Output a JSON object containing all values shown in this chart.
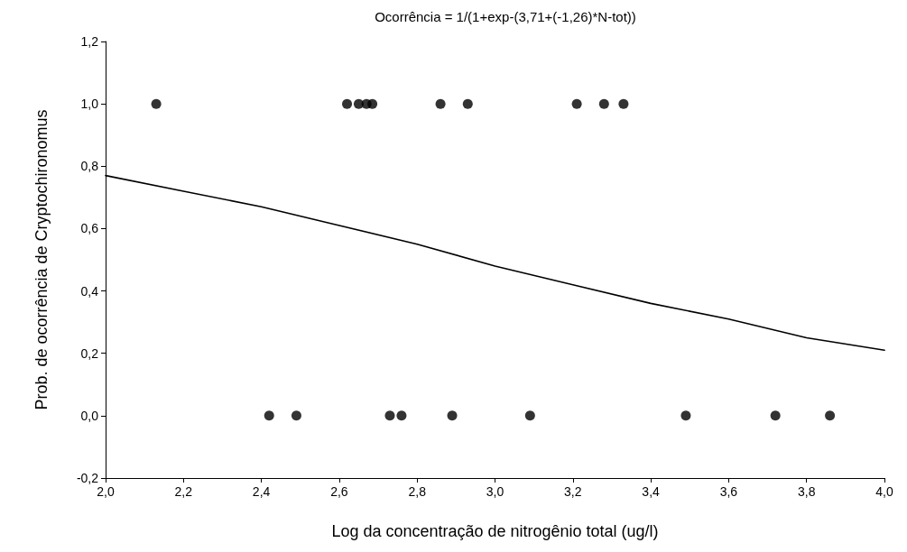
{
  "chart_data": {
    "type": "scatter",
    "title": "Ocorrência = 1/(1+exp-(3,71+(-1,26)*N-tot))",
    "xlabel": "Log da concentração de nitrogênio total (ug/l)",
    "ylabel": "Prob. de ocorrência de Cryptochironomus",
    "marker": "circle",
    "grid": false,
    "xlim": [
      2.0,
      4.0
    ],
    "ylim": [
      -0.2,
      1.2
    ],
    "xticks": [
      {
        "value": 2.0,
        "label": "2,0"
      },
      {
        "value": 2.2,
        "label": "2,2"
      },
      {
        "value": 2.4,
        "label": "2,4"
      },
      {
        "value": 2.6,
        "label": "2,6"
      },
      {
        "value": 2.8,
        "label": "2,8"
      },
      {
        "value": 3.0,
        "label": "3,0"
      },
      {
        "value": 3.2,
        "label": "3,2"
      },
      {
        "value": 3.4,
        "label": "3,4"
      },
      {
        "value": 3.6,
        "label": "3,6"
      },
      {
        "value": 3.8,
        "label": "3,8"
      },
      {
        "value": 4.0,
        "label": "4,0"
      }
    ],
    "yticks": [
      {
        "value": -0.2,
        "label": "-0,2"
      },
      {
        "value": 0,
        "label": "0,0"
      },
      {
        "value": 0.2,
        "label": "0,2"
      },
      {
        "value": 0.4,
        "label": "0,4"
      },
      {
        "value": 0.6,
        "label": "0,6"
      },
      {
        "value": 0.8,
        "label": "0,8"
      },
      {
        "value": 1.0,
        "label": "1,0"
      },
      {
        "value": 1.2,
        "label": "1,2"
      }
    ],
    "series": [
      {
        "color": "#000000",
        "x": [
          2.13,
          2.62,
          2.65,
          2.67,
          2.685,
          2.86,
          2.93,
          3.21,
          3.28,
          3.33,
          2.42,
          2.49,
          2.73,
          2.76,
          2.89,
          3.09,
          3.49,
          3.72,
          3.86
        ],
        "values": [
          1,
          1,
          1,
          1,
          1,
          1,
          1,
          1,
          1,
          1,
          0,
          0,
          0,
          0,
          0,
          0,
          0,
          0,
          0
        ]
      },
      {
        "type": "line",
        "color": "#000000",
        "marker": "none",
        "x": [
          2.0,
          2.2,
          2.4,
          2.6,
          2.8,
          3.0,
          3.2,
          3.4,
          3.6,
          3.8,
          4.0
        ],
        "values": [
          0.77,
          0.72,
          0.67,
          0.61,
          0.55,
          0.48,
          0.42,
          0.36,
          0.31,
          0.25,
          0.21
        ]
      }
    ]
  }
}
